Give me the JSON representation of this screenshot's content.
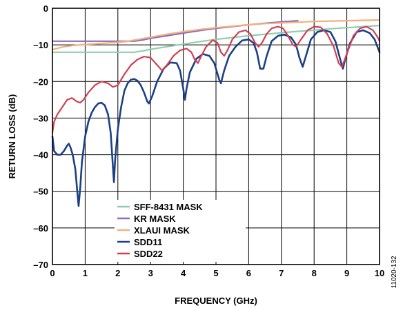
{
  "chart_data": {
    "type": "line",
    "xlabel": "FREQUENCY (GHz)",
    "ylabel": "RETURN LOSS (dB)",
    "xlim": [
      0,
      10
    ],
    "ylim": [
      -70,
      0
    ],
    "x_ticks": [
      "0",
      "1",
      "2",
      "3",
      "4",
      "5",
      "6",
      "7",
      "8",
      "9",
      "10"
    ],
    "y_ticks": [
      "0",
      "–10",
      "–20",
      "–30",
      "–40",
      "–50",
      "–60",
      "–70"
    ],
    "grid": true,
    "legend_position": "lower-center",
    "figure_id": "11020-132",
    "series": [
      {
        "name": "SFF-8431 MASK",
        "color": "#8fcfae",
        "width": 2.2,
        "points": [
          [
            0,
            -12
          ],
          [
            0.5,
            -12
          ],
          [
            1,
            -12
          ],
          [
            1.5,
            -12
          ],
          [
            2,
            -12
          ],
          [
            2.5,
            -12
          ],
          [
            2.8,
            -11.6
          ],
          [
            3,
            -11.2
          ],
          [
            3.5,
            -10.5
          ],
          [
            4,
            -9.8
          ],
          [
            4.5,
            -9.1
          ],
          [
            5,
            -8.5
          ],
          [
            5.5,
            -8
          ],
          [
            6,
            -7.5
          ],
          [
            6.5,
            -7.1
          ],
          [
            7,
            -6.7
          ],
          [
            7.5,
            -6.3
          ],
          [
            8,
            -6
          ],
          [
            8.5,
            -5.6
          ],
          [
            9,
            -5.3
          ],
          [
            9.5,
            -5
          ],
          [
            10,
            -4.7
          ]
        ]
      },
      {
        "name": "KR MASK",
        "color": "#8c6cc0",
        "width": 2.2,
        "points": [
          [
            0,
            -9
          ],
          [
            0.5,
            -9
          ],
          [
            1,
            -9
          ],
          [
            1.5,
            -9
          ],
          [
            2,
            -9
          ],
          [
            2.5,
            -9
          ],
          [
            2.8,
            -8.6
          ],
          [
            3,
            -8.2
          ],
          [
            3.5,
            -7.5
          ],
          [
            4,
            -6.8
          ],
          [
            4.5,
            -6.1
          ],
          [
            5,
            -5.5
          ],
          [
            5.5,
            -5
          ],
          [
            6,
            -4.5
          ],
          [
            6.5,
            -4.1
          ],
          [
            7,
            -3.7
          ],
          [
            7.5,
            -3.4
          ]
        ]
      },
      {
        "name": "XLAUI MASK",
        "color": "#f4b07c",
        "width": 2.2,
        "points": [
          [
            0,
            -11.3
          ],
          [
            0.3,
            -10.6
          ],
          [
            0.6,
            -10.2
          ],
          [
            1,
            -9.9
          ],
          [
            1.5,
            -9.6
          ],
          [
            2,
            -9.3
          ],
          [
            2.25,
            -9.1
          ],
          [
            2.5,
            -8.7
          ],
          [
            3,
            -7.9
          ],
          [
            3.5,
            -7.1
          ],
          [
            4,
            -6.4
          ],
          [
            4.5,
            -5.8
          ],
          [
            5,
            -5.3
          ],
          [
            5.5,
            -4.9
          ],
          [
            6,
            -4.5
          ],
          [
            6.5,
            -4.2
          ],
          [
            7,
            -4
          ],
          [
            7.5,
            -3.8
          ],
          [
            8,
            -3.6
          ],
          [
            8.5,
            -3.5
          ],
          [
            9,
            -3.4
          ],
          [
            9.5,
            -3.3
          ],
          [
            10,
            -3.2
          ]
        ]
      },
      {
        "name": "SDD11",
        "color": "#1c3f86",
        "width": 2.6,
        "points": [
          [
            0,
            -35
          ],
          [
            0.05,
            -39
          ],
          [
            0.15,
            -40
          ],
          [
            0.25,
            -40
          ],
          [
            0.35,
            -39
          ],
          [
            0.45,
            -37.5
          ],
          [
            0.5,
            -37
          ],
          [
            0.55,
            -38
          ],
          [
            0.62,
            -40
          ],
          [
            0.7,
            -44
          ],
          [
            0.75,
            -49
          ],
          [
            0.8,
            -54
          ],
          [
            0.85,
            -49
          ],
          [
            0.9,
            -42
          ],
          [
            1,
            -35
          ],
          [
            1.1,
            -31
          ],
          [
            1.2,
            -28.5
          ],
          [
            1.3,
            -27
          ],
          [
            1.4,
            -26
          ],
          [
            1.5,
            -25.8
          ],
          [
            1.6,
            -26.5
          ],
          [
            1.7,
            -29
          ],
          [
            1.78,
            -34
          ],
          [
            1.84,
            -42
          ],
          [
            1.88,
            -47.5
          ],
          [
            1.92,
            -41
          ],
          [
            2,
            -33
          ],
          [
            2.1,
            -27
          ],
          [
            2.2,
            -22.5
          ],
          [
            2.3,
            -20.5
          ],
          [
            2.4,
            -19.5
          ],
          [
            2.5,
            -19.3
          ],
          [
            2.6,
            -19.8
          ],
          [
            2.7,
            -21
          ],
          [
            2.8,
            -23
          ],
          [
            2.9,
            -25.5
          ],
          [
            2.95,
            -26
          ],
          [
            3.05,
            -24
          ],
          [
            3.2,
            -20
          ],
          [
            3.4,
            -16.5
          ],
          [
            3.6,
            -14.8
          ],
          [
            3.8,
            -15
          ],
          [
            3.9,
            -17
          ],
          [
            4,
            -22
          ],
          [
            4.05,
            -25
          ],
          [
            4.1,
            -22
          ],
          [
            4.2,
            -17.5
          ],
          [
            4.4,
            -13.8
          ],
          [
            4.6,
            -12.5
          ],
          [
            4.8,
            -13
          ],
          [
            4.95,
            -15
          ],
          [
            5.1,
            -19.5
          ],
          [
            5.15,
            -20.5
          ],
          [
            5.25,
            -17
          ],
          [
            5.4,
            -13
          ],
          [
            5.6,
            -10.5
          ],
          [
            5.8,
            -8.8
          ],
          [
            6,
            -8.5
          ],
          [
            6.15,
            -9.5
          ],
          [
            6.25,
            -12
          ],
          [
            6.35,
            -16.5
          ],
          [
            6.45,
            -16.5
          ],
          [
            6.55,
            -13
          ],
          [
            6.7,
            -9
          ],
          [
            6.9,
            -7.5
          ],
          [
            7.1,
            -7.2
          ],
          [
            7.3,
            -8
          ],
          [
            7.45,
            -10
          ],
          [
            7.55,
            -13.5
          ],
          [
            7.65,
            -16
          ],
          [
            7.75,
            -13
          ],
          [
            7.9,
            -8.5
          ],
          [
            8.1,
            -6.5
          ],
          [
            8.3,
            -6
          ],
          [
            8.5,
            -6.5
          ],
          [
            8.65,
            -9
          ],
          [
            8.8,
            -14
          ],
          [
            8.88,
            -16.5
          ],
          [
            8.95,
            -14
          ],
          [
            9.1,
            -9.5
          ],
          [
            9.3,
            -6.5
          ],
          [
            9.5,
            -6
          ],
          [
            9.7,
            -6.8
          ],
          [
            9.85,
            -8.5
          ],
          [
            10,
            -12
          ]
        ]
      },
      {
        "name": "SDD22",
        "color": "#d23e52",
        "width": 2.2,
        "points": [
          [
            0,
            -34
          ],
          [
            0.05,
            -31
          ],
          [
            0.15,
            -29
          ],
          [
            0.3,
            -27
          ],
          [
            0.45,
            -25
          ],
          [
            0.6,
            -24.5
          ],
          [
            0.75,
            -25.5
          ],
          [
            0.85,
            -25.8
          ],
          [
            0.95,
            -25
          ],
          [
            1.1,
            -23
          ],
          [
            1.3,
            -21
          ],
          [
            1.5,
            -20
          ],
          [
            1.7,
            -20.5
          ],
          [
            1.85,
            -21.5
          ],
          [
            2,
            -21
          ],
          [
            2.2,
            -18
          ],
          [
            2.4,
            -15.5
          ],
          [
            2.6,
            -14
          ],
          [
            2.8,
            -13.2
          ],
          [
            3,
            -13.5
          ],
          [
            3.2,
            -15.5
          ],
          [
            3.35,
            -17
          ],
          [
            3.5,
            -15.5
          ],
          [
            3.7,
            -13
          ],
          [
            3.9,
            -11.5
          ],
          [
            4.1,
            -11
          ],
          [
            4.25,
            -12
          ],
          [
            4.35,
            -14
          ],
          [
            4.45,
            -15
          ],
          [
            4.55,
            -13
          ],
          [
            4.7,
            -10.5
          ],
          [
            4.9,
            -8.7
          ],
          [
            5.05,
            -9.5
          ],
          [
            5.15,
            -12
          ],
          [
            5.25,
            -13
          ],
          [
            5.35,
            -11.5
          ],
          [
            5.5,
            -8.5
          ],
          [
            5.7,
            -6.5
          ],
          [
            5.9,
            -6
          ],
          [
            6.05,
            -7
          ],
          [
            6.2,
            -9.5
          ],
          [
            6.3,
            -10.5
          ],
          [
            6.4,
            -9.5
          ],
          [
            6.55,
            -7
          ],
          [
            6.7,
            -5.5
          ],
          [
            6.9,
            -5
          ],
          [
            7.05,
            -5.5
          ],
          [
            7.2,
            -7.5
          ],
          [
            7.35,
            -10
          ],
          [
            7.45,
            -10.5
          ],
          [
            7.6,
            -8.5
          ],
          [
            7.8,
            -6
          ],
          [
            8,
            -5
          ],
          [
            8.2,
            -5.2
          ],
          [
            8.4,
            -7
          ],
          [
            8.6,
            -10.5
          ],
          [
            8.75,
            -15
          ],
          [
            8.85,
            -16
          ],
          [
            9,
            -12.5
          ],
          [
            9.2,
            -7.5
          ],
          [
            9.4,
            -5.5
          ],
          [
            9.6,
            -5
          ],
          [
            9.8,
            -6
          ],
          [
            9.95,
            -8
          ],
          [
            10,
            -9
          ]
        ]
      }
    ]
  }
}
